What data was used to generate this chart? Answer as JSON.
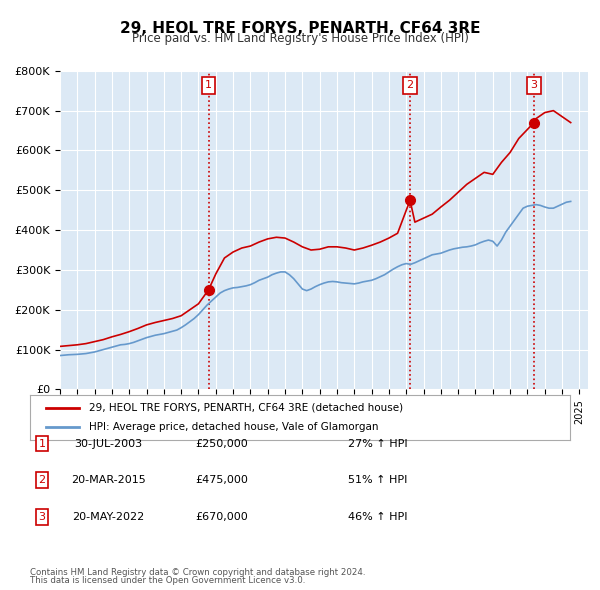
{
  "title": "29, HEOL TRE FORYS, PENARTH, CF64 3RE",
  "subtitle": "Price paid vs. HM Land Registry's House Price Index (HPI)",
  "xlabel": "",
  "ylabel": "",
  "background_color": "#ffffff",
  "plot_bg_color": "#dce9f5",
  "grid_color": "#ffffff",
  "red_line_color": "#cc0000",
  "blue_line_color": "#6699cc",
  "ylim": [
    0,
    800000
  ],
  "yticks": [
    0,
    100000,
    200000,
    300000,
    400000,
    500000,
    600000,
    700000,
    800000
  ],
  "ytick_labels": [
    "£0",
    "£100K",
    "£200K",
    "£300K",
    "£400K",
    "£500K",
    "£600K",
    "£700K",
    "£800K"
  ],
  "xlim_start": 1995.0,
  "xlim_end": 2025.5,
  "xtick_years": [
    1995,
    1996,
    1997,
    1998,
    1999,
    2000,
    2001,
    2002,
    2003,
    2004,
    2005,
    2006,
    2007,
    2008,
    2009,
    2010,
    2011,
    2012,
    2013,
    2014,
    2015,
    2016,
    2017,
    2018,
    2019,
    2020,
    2021,
    2022,
    2023,
    2024,
    2025
  ],
  "sale_events": [
    {
      "label": "1",
      "year": 2003.58,
      "price": 250000,
      "date": "30-JUL-2003",
      "pct": "27%"
    },
    {
      "label": "2",
      "year": 2015.22,
      "price": 475000,
      "date": "20-MAR-2015",
      "pct": "51%"
    },
    {
      "label": "3",
      "year": 2022.38,
      "price": 670000,
      "date": "20-MAY-2022",
      "pct": "46%"
    }
  ],
  "legend_label_red": "29, HEOL TRE FORYS, PENARTH, CF64 3RE (detached house)",
  "legend_label_blue": "HPI: Average price, detached house, Vale of Glamorgan",
  "footer_line1": "Contains HM Land Registry data © Crown copyright and database right 2024.",
  "footer_line2": "This data is licensed under the Open Government Licence v3.0.",
  "table_rows": [
    {
      "num": "1",
      "date": "30-JUL-2003",
      "price": "£250,000",
      "pct": "27% ↑ HPI"
    },
    {
      "num": "2",
      "date": "20-MAR-2015",
      "price": "£475,000",
      "pct": "51% ↑ HPI"
    },
    {
      "num": "3",
      "date": "20-MAY-2022",
      "price": "£670,000",
      "pct": "46% ↑ HPI"
    }
  ],
  "hpi_data": {
    "years": [
      1995.0,
      1995.25,
      1995.5,
      1995.75,
      1996.0,
      1996.25,
      1996.5,
      1996.75,
      1997.0,
      1997.25,
      1997.5,
      1997.75,
      1998.0,
      1998.25,
      1998.5,
      1998.75,
      1999.0,
      1999.25,
      1999.5,
      1999.75,
      2000.0,
      2000.25,
      2000.5,
      2000.75,
      2001.0,
      2001.25,
      2001.5,
      2001.75,
      2002.0,
      2002.25,
      2002.5,
      2002.75,
      2003.0,
      2003.25,
      2003.5,
      2003.75,
      2004.0,
      2004.25,
      2004.5,
      2004.75,
      2005.0,
      2005.25,
      2005.5,
      2005.75,
      2006.0,
      2006.25,
      2006.5,
      2006.75,
      2007.0,
      2007.25,
      2007.5,
      2007.75,
      2008.0,
      2008.25,
      2008.5,
      2008.75,
      2009.0,
      2009.25,
      2009.5,
      2009.75,
      2010.0,
      2010.25,
      2010.5,
      2010.75,
      2011.0,
      2011.25,
      2011.5,
      2011.75,
      2012.0,
      2012.25,
      2012.5,
      2012.75,
      2013.0,
      2013.25,
      2013.5,
      2013.75,
      2014.0,
      2014.25,
      2014.5,
      2014.75,
      2015.0,
      2015.25,
      2015.5,
      2015.75,
      2016.0,
      2016.25,
      2016.5,
      2016.75,
      2017.0,
      2017.25,
      2017.5,
      2017.75,
      2018.0,
      2018.25,
      2018.5,
      2018.75,
      2019.0,
      2019.25,
      2019.5,
      2019.75,
      2020.0,
      2020.25,
      2020.5,
      2020.75,
      2021.0,
      2021.25,
      2021.5,
      2021.75,
      2022.0,
      2022.25,
      2022.5,
      2022.75,
      2023.0,
      2023.25,
      2023.5,
      2023.75,
      2024.0,
      2024.25,
      2024.5
    ],
    "values": [
      85000,
      86000,
      87000,
      87500,
      88000,
      89000,
      90000,
      92000,
      94000,
      97000,
      100000,
      103000,
      106000,
      109000,
      112000,
      113000,
      115000,
      118000,
      122000,
      126000,
      130000,
      133000,
      136000,
      138000,
      140000,
      143000,
      146000,
      149000,
      155000,
      162000,
      170000,
      178000,
      188000,
      200000,
      212000,
      222000,
      232000,
      242000,
      248000,
      252000,
      255000,
      256000,
      258000,
      260000,
      263000,
      268000,
      274000,
      278000,
      282000,
      288000,
      292000,
      295000,
      295000,
      288000,
      278000,
      265000,
      252000,
      248000,
      252000,
      258000,
      263000,
      267000,
      270000,
      271000,
      270000,
      268000,
      267000,
      266000,
      265000,
      267000,
      270000,
      272000,
      274000,
      278000,
      283000,
      288000,
      295000,
      302000,
      308000,
      313000,
      316000,
      314000,
      318000,
      323000,
      328000,
      333000,
      338000,
      340000,
      342000,
      346000,
      350000,
      353000,
      355000,
      357000,
      358000,
      360000,
      363000,
      368000,
      372000,
      375000,
      372000,
      360000,
      375000,
      395000,
      410000,
      425000,
      440000,
      455000,
      460000,
      462000,
      464000,
      462000,
      458000,
      455000,
      455000,
      460000,
      465000,
      470000,
      472000
    ]
  },
  "price_paid_data": {
    "years": [
      1995.0,
      1995.5,
      1996.0,
      1996.5,
      1997.0,
      1997.5,
      1998.0,
      1998.5,
      1999.0,
      1999.5,
      2000.0,
      2000.5,
      2001.0,
      2001.5,
      2002.0,
      2002.5,
      2003.0,
      2003.58,
      2004.0,
      2004.5,
      2005.0,
      2005.5,
      2006.0,
      2006.5,
      2007.0,
      2007.5,
      2008.0,
      2008.5,
      2009.0,
      2009.5,
      2010.0,
      2010.5,
      2011.0,
      2011.5,
      2012.0,
      2012.5,
      2013.0,
      2013.5,
      2014.0,
      2014.5,
      2015.22,
      2015.5,
      2016.0,
      2016.5,
      2017.0,
      2017.5,
      2018.0,
      2018.5,
      2019.0,
      2019.5,
      2020.0,
      2020.5,
      2021.0,
      2021.5,
      2022.38,
      2022.5,
      2023.0,
      2023.5,
      2024.0,
      2024.5
    ],
    "values": [
      108000,
      110000,
      112000,
      115000,
      120000,
      125000,
      132000,
      138000,
      145000,
      153000,
      162000,
      168000,
      173000,
      178000,
      185000,
      200000,
      215000,
      250000,
      290000,
      330000,
      345000,
      355000,
      360000,
      370000,
      378000,
      382000,
      380000,
      370000,
      358000,
      350000,
      352000,
      358000,
      358000,
      355000,
      350000,
      355000,
      362000,
      370000,
      380000,
      392000,
      475000,
      420000,
      430000,
      440000,
      458000,
      475000,
      495000,
      515000,
      530000,
      545000,
      540000,
      570000,
      595000,
      630000,
      670000,
      680000,
      695000,
      700000,
      685000,
      670000
    ]
  }
}
